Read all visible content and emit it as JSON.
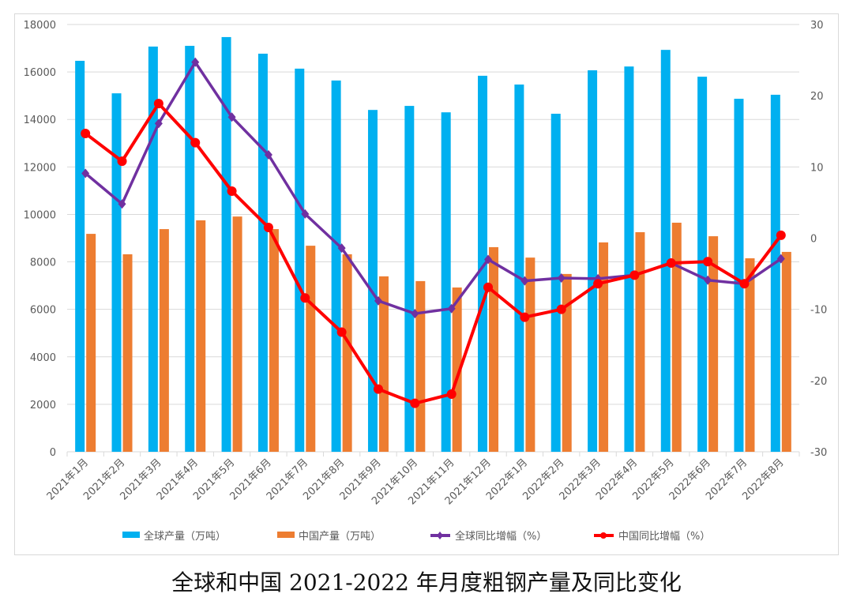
{
  "caption": "全球和中国 2021-2022 年月度粗钢产量及同比变化",
  "chart_data": {
    "type": "bar+line",
    "title": "",
    "categories": [
      "2021年1月",
      "2021年2月",
      "2021年3月",
      "2021年4月",
      "2021年5月",
      "2021年6月",
      "2021年7月",
      "2021年8月",
      "2021年9月",
      "2021年10月",
      "2021年11月",
      "2021年12月",
      "2022年1月",
      "2022年2月",
      "2022年3月",
      "2022年4月",
      "2022年5月",
      "2022年6月",
      "2022年7月",
      "2022年8月"
    ],
    "y_left": {
      "range": [
        0,
        18000
      ],
      "ticks": [
        0,
        2000,
        4000,
        6000,
        8000,
        10000,
        12000,
        14000,
        16000,
        18000
      ]
    },
    "y_right": {
      "range": [
        -30,
        30
      ],
      "ticks": [
        -30,
        -20,
        -10,
        0,
        10,
        20,
        30
      ]
    },
    "grid": true,
    "legend_position": "bottom",
    "series": [
      {
        "name": "全球产量（万吨）",
        "type": "bar",
        "axis": "left",
        "color": "#00b0f0",
        "values": [
          16470,
          15100,
          17070,
          17100,
          17470,
          16770,
          16140,
          15640,
          14400,
          14570,
          14300,
          15840,
          15470,
          14240,
          16070,
          16230,
          16930,
          15800,
          14870,
          15040
        ]
      },
      {
        "name": "中国产量（万吨）",
        "type": "bar",
        "axis": "left",
        "color": "#ed7d31",
        "values": [
          9180,
          8320,
          9380,
          9750,
          9910,
          9380,
          8680,
          8320,
          7390,
          7190,
          6920,
          8620,
          8180,
          7490,
          8820,
          9250,
          9650,
          9080,
          8150,
          8420
        ]
      },
      {
        "name": "全球同比增幅（%）",
        "type": "line",
        "axis": "right",
        "color": "#7030a0",
        "values": [
          9.1,
          4.8,
          16.1,
          24.7,
          17.0,
          11.7,
          3.4,
          -1.4,
          -8.8,
          -10.6,
          -9.9,
          -3.0,
          -6.0,
          -5.6,
          -5.7,
          -5.2,
          -3.5,
          -5.9,
          -6.4,
          -2.9
        ]
      },
      {
        "name": "中国同比增幅（%）",
        "type": "line",
        "axis": "right",
        "color": "#ff0000",
        "values": [
          14.7,
          10.8,
          18.9,
          13.4,
          6.6,
          1.5,
          -8.4,
          -13.2,
          -21.2,
          -23.2,
          -21.9,
          -6.9,
          -11.1,
          -10.0,
          -6.4,
          -5.2,
          -3.5,
          -3.3,
          -6.4,
          0.4
        ]
      }
    ]
  }
}
